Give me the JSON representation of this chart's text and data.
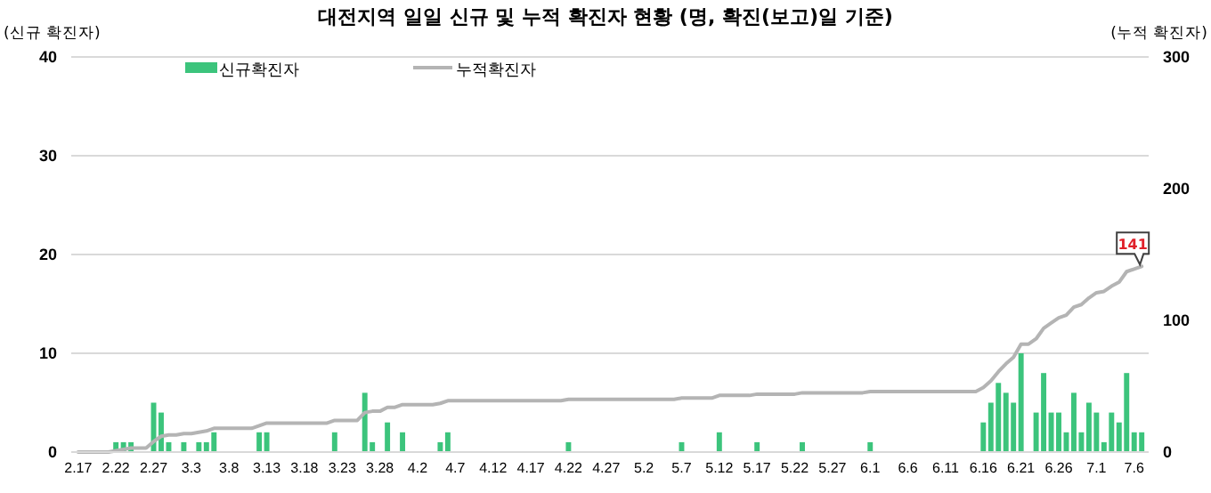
{
  "chart_data": {
    "type": "bar",
    "title": "대전지역 일일 신규 및 누적 확진자 현황 (명, 확진(보고)일 기준)",
    "ylabel": "(신규 확진자)",
    "y2label": "(누적 확진자)",
    "categories": [
      "2.17",
      null,
      null,
      null,
      null,
      "2.22",
      null,
      null,
      null,
      null,
      "2.27",
      null,
      null,
      null,
      null,
      "3.3",
      null,
      null,
      null,
      null,
      "3.8",
      null,
      null,
      null,
      null,
      "3.13",
      null,
      null,
      null,
      null,
      "3.18",
      null,
      null,
      null,
      null,
      "3.23",
      null,
      null,
      null,
      null,
      "3.28",
      null,
      null,
      null,
      null,
      "4.2",
      null,
      null,
      null,
      null,
      "4.7",
      null,
      null,
      null,
      null,
      "4.12",
      null,
      null,
      null,
      null,
      "4.17",
      null,
      null,
      null,
      null,
      "4.22",
      null,
      null,
      null,
      null,
      "4.27",
      null,
      null,
      null,
      null,
      "5.2",
      null,
      null,
      null,
      null,
      "5.7",
      null,
      null,
      null,
      null,
      "5.12",
      null,
      null,
      null,
      null,
      "5.17",
      null,
      null,
      null,
      null,
      "5.22",
      null,
      null,
      null,
      null,
      "5.27",
      null,
      null,
      null,
      null,
      "6.1",
      null,
      null,
      null,
      null,
      "6.6",
      null,
      null,
      null,
      null,
      "6.11",
      null,
      null,
      null,
      null,
      "6.16",
      null,
      null,
      null,
      null,
      "6.21",
      null,
      null,
      null,
      null,
      "6.26",
      null,
      null,
      null,
      null,
      "7.1",
      null,
      null,
      null,
      null,
      "7.6",
      null
    ],
    "series": [
      {
        "name": "신규확진자",
        "color": "#3cc47c",
        "values": [
          0,
          0,
          0,
          0,
          0,
          1,
          1,
          1,
          0,
          0,
          5,
          4,
          1,
          0,
          1,
          0,
          1,
          1,
          2,
          0,
          0,
          0,
          0,
          0,
          2,
          2,
          0,
          0,
          0,
          0,
          0,
          0,
          0,
          0,
          2,
          0,
          0,
          0,
          6,
          1,
          0,
          3,
          0,
          2,
          0,
          0,
          0,
          0,
          1,
          2,
          0,
          0,
          0,
          0,
          0,
          0,
          0,
          0,
          0,
          0,
          0,
          0,
          0,
          0,
          0,
          1,
          0,
          0,
          0,
          0,
          0,
          0,
          0,
          0,
          0,
          0,
          0,
          0,
          0,
          0,
          1,
          0,
          0,
          0,
          0,
          2,
          0,
          0,
          0,
          0,
          1,
          0,
          0,
          0,
          0,
          0,
          1,
          0,
          0,
          0,
          0,
          0,
          0,
          0,
          0,
          1,
          0,
          0,
          0,
          0,
          0,
          0,
          0,
          0,
          0,
          0,
          0,
          0,
          0,
          0,
          3,
          5,
          7,
          6,
          5,
          10,
          0,
          4,
          8,
          4,
          4,
          2,
          6,
          2,
          5,
          4,
          1,
          4,
          3,
          8,
          2,
          2
        ]
      },
      {
        "name": "누적확진자",
        "type": "line",
        "axis": "y2",
        "color": "#b4b4b4",
        "values": [
          0,
          0,
          0,
          0,
          0,
          1,
          2,
          3,
          3,
          3,
          8,
          12,
          13,
          13,
          14,
          14,
          15,
          16,
          18,
          18,
          18,
          18,
          18,
          18,
          20,
          22,
          22,
          22,
          22,
          22,
          22,
          22,
          22,
          22,
          24,
          24,
          24,
          24,
          30,
          31,
          31,
          34,
          34,
          36,
          36,
          36,
          36,
          36,
          37,
          39,
          39,
          39,
          39,
          39,
          39,
          39,
          39,
          39,
          39,
          39,
          39,
          39,
          39,
          39,
          39,
          40,
          40,
          40,
          40,
          40,
          40,
          40,
          40,
          40,
          40,
          40,
          40,
          40,
          40,
          40,
          41,
          41,
          41,
          41,
          41,
          43,
          43,
          43,
          43,
          43,
          44,
          44,
          44,
          44,
          44,
          44,
          45,
          45,
          45,
          45,
          45,
          45,
          45,
          45,
          45,
          46,
          46,
          46,
          46,
          46,
          46,
          46,
          46,
          46,
          46,
          46,
          46,
          46,
          46,
          46,
          49,
          54,
          61,
          67,
          72,
          82,
          82,
          86,
          94,
          98,
          102,
          104,
          110,
          112,
          117,
          121,
          122,
          126,
          129,
          137,
          139,
          141
        ],
        "value_labels": [
          null,
          null,
          null,
          null,
          null,
          null,
          null,
          null,
          null,
          null,
          null,
          null,
          null,
          null,
          null,
          null,
          null,
          null,
          null,
          null,
          null,
          null,
          null,
          null,
          null,
          null,
          null,
          null,
          null,
          null,
          null,
          null,
          null,
          null,
          null,
          null,
          null,
          null,
          null,
          null,
          null,
          null,
          null,
          null,
          null,
          null,
          null,
          null,
          null,
          null,
          null,
          null,
          null,
          null,
          null,
          null,
          null,
          null,
          null,
          null,
          null,
          null,
          null,
          null,
          null,
          null,
          null,
          null,
          null,
          null,
          null,
          null,
          null,
          null,
          null,
          null,
          null,
          null,
          null,
          null,
          null,
          null,
          null,
          null,
          null,
          null,
          null,
          null,
          null,
          null,
          null,
          null,
          null,
          null,
          null,
          null,
          null,
          null,
          null,
          null,
          null,
          null,
          null,
          null,
          null,
          null,
          null,
          null,
          null,
          null,
          null,
          null,
          null,
          null,
          null,
          null,
          null,
          null,
          null,
          null,
          null,
          null,
          null,
          null,
          null,
          null,
          null,
          null,
          null,
          null,
          null,
          null,
          null,
          null,
          null,
          null,
          null,
          null,
          null,
          null,
          null,
          "141"
        ]
      }
    ],
    "ylim": [
      0,
      40
    ],
    "yticks": [
      0,
      10,
      20,
      30,
      40
    ],
    "y2lim": [
      0,
      300
    ],
    "y2ticks": [
      0,
      100,
      200,
      300
    ],
    "grid": "y",
    "legend": "top left"
  }
}
